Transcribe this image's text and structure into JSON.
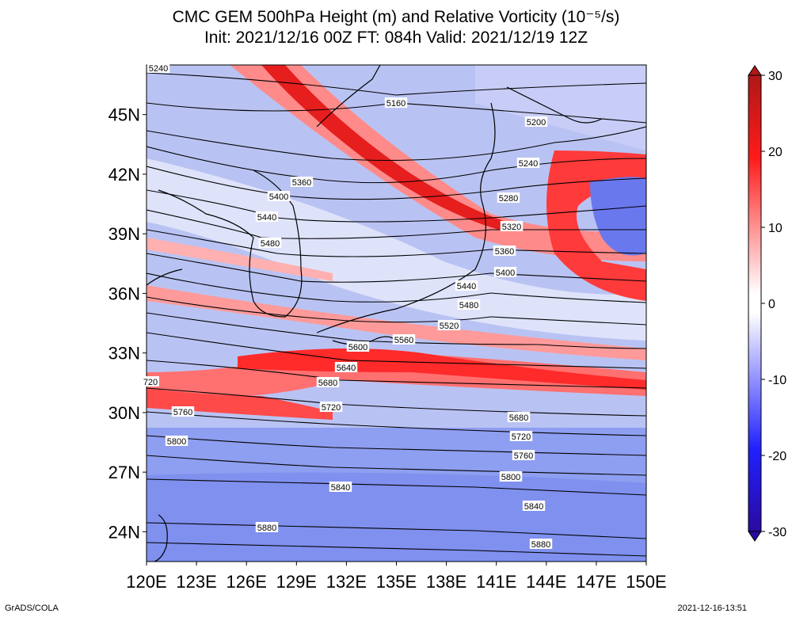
{
  "title": {
    "line1": "CMC GEM 500hPa Height (m) and Relative Vorticity (10⁻⁵/s)",
    "line2": "Init: 2021/12/16 00Z  FT: 084h  Valid: 2021/12/19 12Z"
  },
  "map": {
    "lon_range": [
      120,
      150
    ],
    "lat_range": [
      22.5,
      47.5
    ],
    "x_ticks": [
      "120E",
      "123E",
      "126E",
      "129E",
      "132E",
      "135E",
      "138E",
      "141E",
      "144E",
      "147E",
      "150E"
    ],
    "y_ticks": [
      "45N",
      "42N",
      "39N",
      "36N",
      "33N",
      "30N",
      "27N",
      "24N"
    ],
    "y_tick_values": [
      45,
      42,
      39,
      36,
      33,
      30,
      27,
      24
    ],
    "contour_labels": [
      "5240",
      "5160",
      "5200",
      "5240",
      "5360",
      "5400",
      "5280",
      "5440",
      "5320",
      "5480",
      "5360",
      "5400",
      "5440",
      "5480",
      "5520",
      "5560",
      "5600",
      "5640",
      "5680",
      "5720",
      "5760",
      "5800",
      "5680",
      "5720",
      "5760",
      "5800",
      "5840",
      "5840",
      "5880",
      "5880",
      "720"
    ]
  },
  "colorbar": {
    "ticks": [
      "30",
      "20",
      "10",
      "0",
      "-10",
      "-20",
      "-30"
    ],
    "tick_values": [
      30,
      20,
      10,
      0,
      -10,
      -20,
      -30
    ],
    "colors": {
      "max": "#b01818",
      "pos": "#ff1a1a",
      "white": "#ffffff",
      "neg": "#3a3aff",
      "min": "#2a0aa0"
    }
  },
  "footer": {
    "left": "GrADS/COLA",
    "right": "2021-12-16-13:51"
  }
}
